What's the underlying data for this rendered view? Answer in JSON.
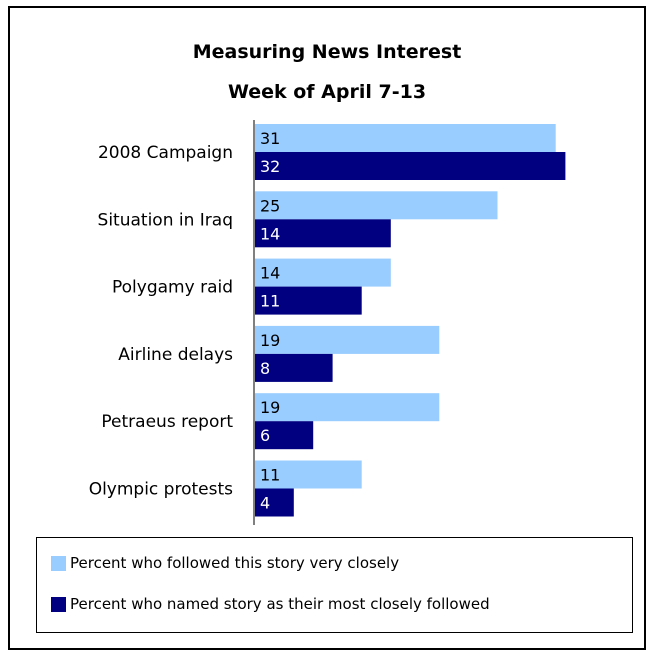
{
  "chart_data": {
    "type": "bar",
    "orientation": "horizontal",
    "title": "Measuring News Interest",
    "subtitle": "Week of April 7-13",
    "categories": [
      "2008 Campaign",
      "Situation in Iraq",
      "Polygamy raid",
      "Airline delays",
      "Petraeus report",
      "Olympic protests"
    ],
    "series": [
      {
        "name": "Percent who followed this story very closely",
        "values": [
          31,
          25,
          14,
          19,
          19,
          11
        ],
        "color": "#99ccff",
        "label_color": "#000000"
      },
      {
        "name": "Percent who named story as their most closely followed",
        "values": [
          32,
          14,
          11,
          8,
          6,
          4
        ],
        "color": "#000080",
        "label_color": "#ffffff"
      }
    ],
    "xlim": [
      0,
      40
    ],
    "grid": false,
    "legend_position": "bottom"
  }
}
